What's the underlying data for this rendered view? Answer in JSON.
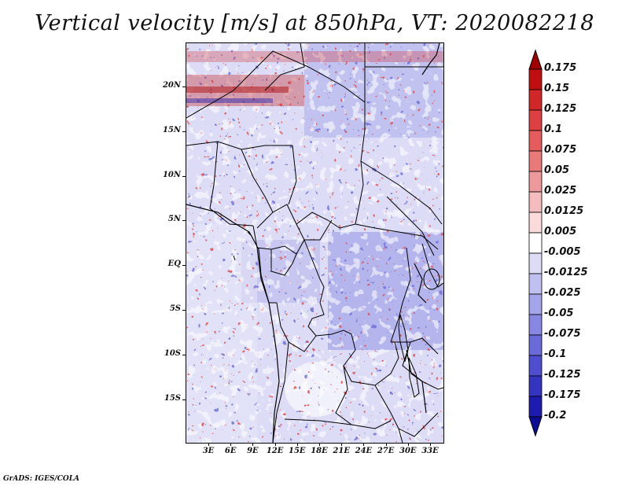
{
  "title": "Vertical velocity [m/s] at 850hPa, VT: 2020082218",
  "credit": "GrADS: IGES/COLA",
  "lat_labels": [
    "20N",
    "15N",
    "10N",
    "5N",
    "EQ",
    "5S",
    "10S",
    "15S"
  ],
  "lon_labels": [
    "3E",
    "6E",
    "9E",
    "12E",
    "15E",
    "18E",
    "21E",
    "24E",
    "27E",
    "30E",
    "33E"
  ],
  "colorbar": {
    "labels": [
      "0.175",
      "0.15",
      "0.125",
      "0.1",
      "0.075",
      "0.05",
      "0.025",
      "0.0125",
      "0.005",
      "-0.005",
      "-0.0125",
      "-0.025",
      "-0.05",
      "-0.075",
      "-0.1",
      "-0.125",
      "-0.175",
      "-0.2"
    ],
    "colors": [
      "#a00000",
      "#c00f0f",
      "#d22727",
      "#dd4040",
      "#e45c5c",
      "#e87a7a",
      "#ee9999",
      "#f4bcbc",
      "#fadada",
      "#ffffff",
      "#dcdcf6",
      "#c0c0f0",
      "#a4a4ea",
      "#8888e2",
      "#6a6ad8",
      "#4e4ece",
      "#3434c0",
      "#1c1cae",
      "#0c0c96"
    ]
  }
}
